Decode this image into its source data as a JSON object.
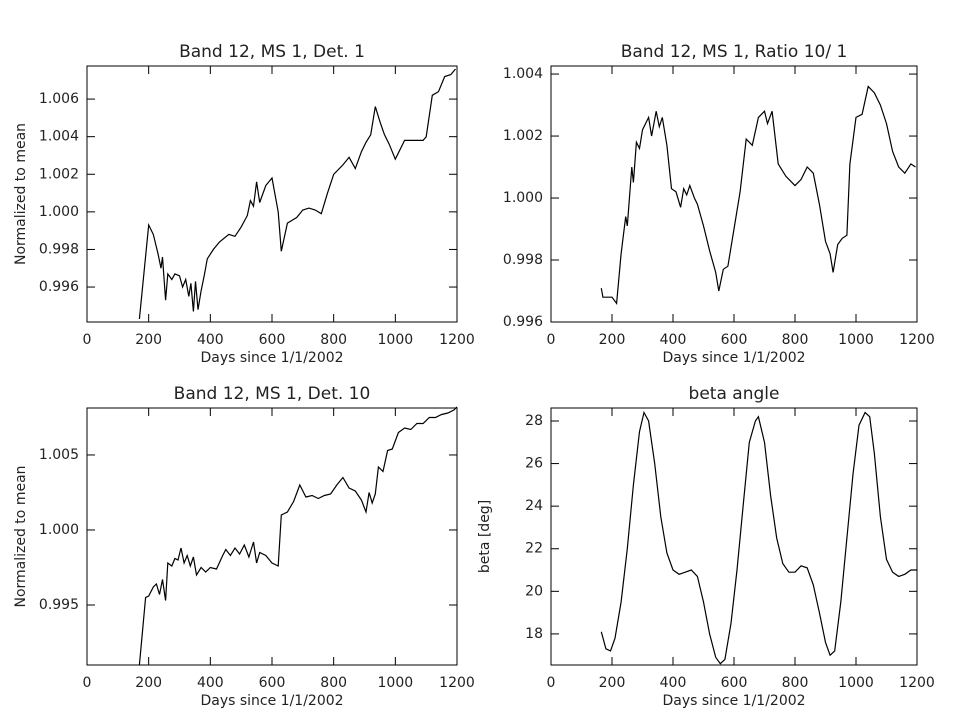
{
  "chart_data": [
    {
      "type": "line",
      "title": "Band  12, MS 1, Det. 1",
      "xlabel": "Days since 1/1/2002",
      "ylabel": "Normalized to mean",
      "color": "#000000",
      "x": [
        170,
        200,
        215,
        230,
        240,
        245,
        255,
        262,
        275,
        285,
        300,
        310,
        320,
        330,
        337,
        345,
        352,
        360,
        370,
        380,
        390,
        410,
        430,
        460,
        480,
        500,
        520,
        530,
        540,
        550,
        560,
        580,
        600,
        620,
        630,
        650,
        680,
        700,
        720,
        740,
        760,
        780,
        800,
        830,
        850,
        870,
        890,
        905,
        920,
        935,
        950,
        965,
        980,
        1000,
        1030,
        1060,
        1090,
        1100,
        1120,
        1140,
        1160,
        1180,
        1195
      ],
      "values": [
        0.9943,
        0.9993,
        0.9988,
        0.9978,
        0.997,
        0.9976,
        0.9953,
        0.9967,
        0.9964,
        0.9967,
        0.9966,
        0.996,
        0.9964,
        0.9955,
        0.9962,
        0.9947,
        0.9963,
        0.9948,
        0.9958,
        0.9966,
        0.9975,
        0.998,
        0.9984,
        0.9988,
        0.9987,
        0.9992,
        0.9998,
        1.0006,
        1.0003,
        1.0016,
        1.0005,
        1.0014,
        1.0018,
        1.0,
        0.9979,
        0.9994,
        0.9997,
        1.0001,
        1.0002,
        1.0001,
        0.9999,
        1.001,
        1.002,
        1.0025,
        1.0029,
        1.0023,
        1.0032,
        1.0037,
        1.0041,
        1.0056,
        1.0048,
        1.0041,
        1.0036,
        1.0028,
        1.0038,
        1.0038,
        1.0038,
        1.004,
        1.0062,
        1.0064,
        1.0072,
        1.0073,
        1.0076
      ],
      "xlim": [
        0,
        1200
      ],
      "xticks": [
        0,
        200,
        400,
        600,
        800,
        1000,
        1200
      ],
      "ylim": [
        0.99414,
        1.00776
      ],
      "yticks": [
        0.996,
        0.998,
        {
          "value": 1,
          "label": "1.000"
        },
        1.002,
        1.004,
        1.006
      ]
    },
    {
      "type": "line",
      "title": "Band  12, MS 1, Ratio 10/ 1",
      "xlabel": "Days since 1/1/2002",
      "color": "#000000",
      "x": [
        165,
        170,
        200,
        215,
        230,
        245,
        250,
        265,
        270,
        280,
        290,
        300,
        320,
        330,
        345,
        355,
        365,
        380,
        395,
        410,
        425,
        435,
        445,
        455,
        470,
        480,
        500,
        520,
        540,
        550,
        565,
        580,
        600,
        620,
        640,
        660,
        680,
        700,
        710,
        725,
        745,
        770,
        800,
        820,
        840,
        860,
        880,
        900,
        915,
        925,
        940,
        955,
        970,
        980,
        1000,
        1020,
        1040,
        1060,
        1080,
        1100,
        1120,
        1140,
        1160,
        1180,
        1195
      ],
      "values": [
        0.99709,
        0.9968,
        0.9968,
        0.9966,
        0.9982,
        0.9994,
        0.9991,
        1.001,
        1.0005,
        1.0018,
        1.0016,
        1.0022,
        1.0026,
        1.002,
        1.0028,
        1.0023,
        1.0026,
        1.0017,
        1.0003,
        1.0002,
        0.9997,
        1.0003,
        1.0001,
        1.0004,
        1.0,
        0.9998,
        0.9991,
        0.9983,
        0.9976,
        0.997,
        0.9977,
        0.9978,
        0.999,
        1.0002,
        1.0019,
        1.0017,
        1.0026,
        1.0028,
        1.0024,
        1.0028,
        1.0011,
        1.0007,
        1.0004,
        1.0006,
        1.001,
        1.0008,
        0.9998,
        0.9986,
        0.9982,
        0.9976,
        0.9985,
        0.9987,
        0.9988,
        1.0011,
        1.0026,
        1.0027,
        1.0036,
        1.0034,
        1.003,
        1.0024,
        1.0015,
        1.001,
        1.0008,
        1.0011,
        1.001
      ],
      "xlim": [
        0,
        1200
      ],
      "xticks": [
        0,
        200,
        400,
        600,
        800,
        1000,
        1200
      ],
      "ylim": [
        0.996,
        1.00426
      ],
      "yticks": [
        0.996,
        0.998,
        {
          "value": 1,
          "label": "1.000"
        },
        1.002,
        1.004
      ]
    },
    {
      "type": "line",
      "title": "Band  12, MS 1, Det. 10",
      "xlabel": "Days since 1/1/2002",
      "ylabel": "Normalized to mean",
      "color": "#000000",
      "x": [
        170,
        190,
        200,
        215,
        225,
        235,
        245,
        255,
        262,
        275,
        285,
        295,
        305,
        315,
        325,
        335,
        345,
        355,
        370,
        385,
        400,
        420,
        440,
        450,
        465,
        480,
        495,
        510,
        525,
        540,
        550,
        560,
        580,
        600,
        620,
        630,
        650,
        670,
        690,
        710,
        730,
        750,
        770,
        790,
        810,
        830,
        850,
        870,
        890,
        905,
        915,
        925,
        935,
        945,
        960,
        975,
        990,
        1010,
        1030,
        1050,
        1070,
        1090,
        1110,
        1130,
        1150,
        1170,
        1190,
        1200
      ],
      "values": [
        0.991,
        0.9955,
        0.9956,
        0.9962,
        0.9964,
        0.9957,
        0.9967,
        0.9953,
        0.9978,
        0.9976,
        0.9981,
        0.998,
        0.9988,
        0.9978,
        0.9983,
        0.9976,
        0.9982,
        0.997,
        0.9975,
        0.9972,
        0.9975,
        0.9974,
        0.9983,
        0.9987,
        0.9983,
        0.9988,
        0.9984,
        0.999,
        0.9982,
        0.9992,
        0.9978,
        0.9985,
        0.9983,
        0.9978,
        0.9976,
        1.001,
        1.0012,
        1.0019,
        1.003,
        1.0022,
        1.0023,
        1.0021,
        1.0023,
        1.0024,
        1.003,
        1.0035,
        1.0028,
        1.0026,
        1.002,
        1.0012,
        1.0025,
        1.0018,
        1.0024,
        1.0042,
        1.0039,
        1.0053,
        1.0054,
        1.0065,
        1.0068,
        1.0067,
        1.0071,
        1.0071,
        1.0075,
        1.0075,
        1.0077,
        1.0078,
        1.008,
        1.0082
      ],
      "xlim": [
        0,
        1200
      ],
      "xticks": [
        0,
        200,
        400,
        600,
        800,
        1000,
        1200
      ],
      "ylim": [
        0.991,
        1.00813
      ],
      "yticks": [
        0.995,
        {
          "value": 1,
          "label": "1.000"
        },
        1.005
      ]
    },
    {
      "type": "line",
      "title": "beta angle",
      "xlabel": "Days since 1/1/2002",
      "ylabel": "beta [deg]",
      "color": "#000000",
      "x": [
        165,
        180,
        195,
        210,
        230,
        250,
        270,
        290,
        305,
        320,
        340,
        360,
        380,
        400,
        420,
        440,
        460,
        480,
        500,
        520,
        540,
        555,
        570,
        590,
        610,
        630,
        650,
        670,
        680,
        700,
        720,
        740,
        760,
        780,
        800,
        820,
        840,
        860,
        880,
        900,
        915,
        930,
        950,
        970,
        990,
        1010,
        1030,
        1045,
        1060,
        1080,
        1100,
        1120,
        1140,
        1160,
        1180,
        1200
      ],
      "values": [
        18.1,
        17.3,
        17.2,
        17.8,
        19.5,
        22.0,
        25.0,
        27.5,
        28.4,
        28.0,
        26.0,
        23.5,
        21.8,
        21.0,
        20.8,
        20.9,
        21.0,
        20.7,
        19.5,
        18.0,
        16.9,
        16.6,
        16.8,
        18.5,
        21.0,
        24.0,
        27.0,
        28.0,
        28.2,
        27.0,
        24.5,
        22.5,
        21.3,
        20.9,
        20.9,
        21.2,
        21.1,
        20.3,
        19.0,
        17.6,
        17.0,
        17.2,
        19.5,
        22.5,
        25.5,
        27.8,
        28.4,
        28.2,
        26.5,
        23.5,
        21.5,
        20.9,
        20.7,
        20.8,
        21.0,
        21.0
      ],
      "xlim": [
        0,
        1200
      ],
      "xticks": [
        0,
        200,
        400,
        600,
        800,
        1000,
        1200
      ],
      "ylim": [
        16.54,
        28.61
      ],
      "yticks": [
        18,
        20,
        22,
        24,
        26,
        28
      ]
    }
  ]
}
